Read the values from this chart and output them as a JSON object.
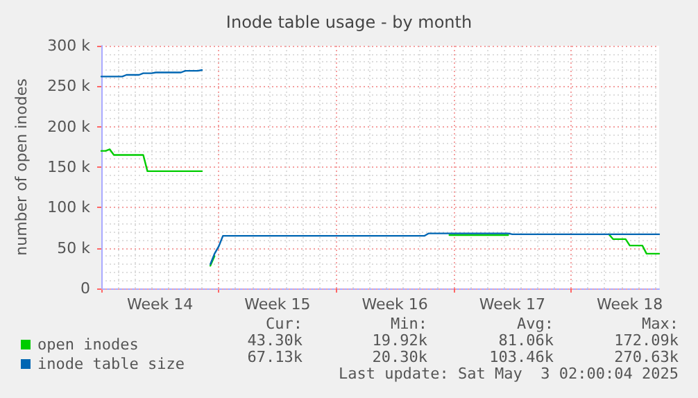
{
  "chart_data": {
    "type": "line",
    "title": "Inode table usage - by month",
    "ylabel": "number of open inodes",
    "categories": [
      null,
      null,
      null,
      null,
      null,
      null,
      null,
      null,
      null,
      null,
      null,
      null,
      null,
      null,
      "Week 14",
      null,
      null,
      null,
      null,
      null,
      null,
      null,
      null,
      null,
      null,
      null,
      null,
      null,
      null,
      null,
      null,
      null,
      null,
      null,
      null,
      null,
      null,
      null,
      null,
      null,
      null,
      null,
      "Week 15",
      null,
      null,
      null,
      null,
      null,
      null,
      null,
      null,
      null,
      null,
      null,
      null,
      null,
      null,
      null,
      null,
      null,
      null,
      null,
      null,
      null,
      null,
      null,
      null,
      null,
      null,
      null,
      "Week 16",
      null,
      null,
      null,
      null,
      null,
      null,
      null,
      null,
      null,
      null,
      null,
      null,
      null,
      null,
      null,
      null,
      null,
      null,
      null,
      null,
      null,
      null,
      null,
      null,
      null,
      null,
      null,
      "Week 17",
      null,
      null,
      null,
      null,
      null,
      null,
      null,
      null,
      null,
      null,
      null,
      null,
      null,
      null,
      null,
      null,
      null,
      null,
      null,
      null,
      null,
      null,
      null,
      null,
      null,
      null,
      null,
      "Week 18",
      null,
      null,
      null,
      null,
      null,
      null,
      null
    ],
    "ylim": [
      0,
      300000
    ],
    "yticks": [
      0,
      {
        "value": 50000,
        "label": "50 k"
      },
      {
        "value": 100000,
        "label": "100 k"
      },
      {
        "value": 150000,
        "label": "150 k"
      },
      {
        "value": 200000,
        "label": "200 k"
      },
      {
        "value": 250000,
        "label": "250 k"
      },
      {
        "value": 300000,
        "label": "300 k"
      }
    ],
    "grid": true,
    "legend": "bottom left",
    "marker": "none",
    "line_style": "solid",
    "series": [
      {
        "name": "open inodes",
        "color": "#00cc00",
        "values": [
          170000,
          170000,
          172000,
          165000,
          165000,
          165000,
          165000,
          165000,
          165000,
          165000,
          165000,
          145000,
          145000,
          145000,
          145000,
          145000,
          145000,
          145000,
          145000,
          145000,
          145000,
          145000,
          145000,
          145000,
          145000,
          null,
          28000,
          40000,
          null,
          null,
          null,
          null,
          null,
          null,
          null,
          null,
          null,
          null,
          null,
          null,
          null,
          null,
          null,
          null,
          null,
          null,
          null,
          null,
          null,
          null,
          null,
          null,
          null,
          null,
          null,
          null,
          null,
          null,
          null,
          null,
          null,
          null,
          null,
          null,
          null,
          null,
          null,
          null,
          null,
          null,
          null,
          null,
          null,
          null,
          null,
          null,
          null,
          null,
          null,
          null,
          null,
          null,
          null,
          66000,
          66000,
          66000,
          66000,
          66000,
          66000,
          66000,
          66000,
          66000,
          66000,
          66000,
          66000,
          66000,
          66000,
          66000,
          null,
          null,
          null,
          null,
          null,
          null,
          null,
          null,
          null,
          null,
          null,
          null,
          null,
          null,
          null,
          null,
          null,
          null,
          null,
          null,
          null,
          null,
          null,
          67000,
          61000,
          61000,
          61000,
          61000,
          53000,
          53000,
          53000,
          53000,
          43000,
          43000,
          43000,
          43000
        ]
      },
      {
        "name": "inode table size",
        "color": "#0066b3",
        "values": [
          262000,
          262000,
          262000,
          262000,
          262000,
          262000,
          264000,
          264000,
          264000,
          264000,
          266000,
          266000,
          266000,
          267000,
          267000,
          267000,
          267000,
          267000,
          267000,
          267000,
          269000,
          269000,
          269000,
          269000,
          270000,
          null,
          30000,
          43000,
          52000,
          65000,
          65000,
          65000,
          65000,
          65000,
          65000,
          65000,
          65000,
          65000,
          65000,
          65000,
          65000,
          65000,
          65000,
          65000,
          65000,
          65000,
          65000,
          65000,
          65000,
          65000,
          65000,
          65000,
          65000,
          65000,
          65000,
          65000,
          65000,
          65000,
          65000,
          65000,
          65000,
          65000,
          65000,
          65000,
          65000,
          65000,
          65000,
          65000,
          65000,
          65000,
          65000,
          65000,
          65000,
          65000,
          65000,
          65000,
          65000,
          65000,
          68000,
          68000,
          68000,
          68000,
          68000,
          68000,
          68000,
          68000,
          68000,
          68000,
          68000,
          68000,
          68000,
          68000,
          68000,
          68000,
          68000,
          68000,
          68000,
          68000,
          67000,
          67000,
          67000,
          67000,
          67000,
          67000,
          67000,
          67000,
          67000,
          67000,
          67000,
          67000,
          67000,
          67000,
          67000,
          67000,
          67000,
          67000,
          67000,
          67000,
          67000,
          67000,
          67000,
          67000,
          67000,
          67000,
          67000,
          67000,
          67000,
          67000,
          67000,
          67000,
          67000,
          67000,
          67000,
          67000
        ]
      }
    ],
    "annotations": [
      "Cur:",
      "Min:",
      "Avg:",
      "Max:",
      "43.30k",
      "19.92k",
      "81.06k",
      "172.09k",
      "67.13k",
      "20.30k",
      "103.46k",
      "270.63k",
      "Last update: Sat May  3 02:00:04 2025"
    ]
  }
}
